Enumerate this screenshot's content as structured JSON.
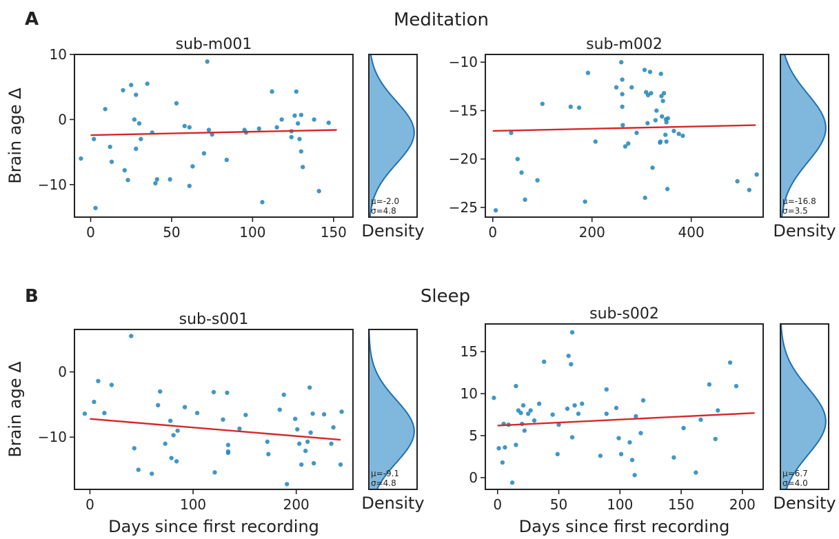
{
  "figure": {
    "panels": [
      {
        "letter": "A",
        "title": "Meditation"
      },
      {
        "letter": "B",
        "title": "Sleep"
      }
    ]
  },
  "colors": {
    "points": "#2b8cbe",
    "fit": "#d62728",
    "density_fill": "#7fb8dc",
    "density_line": "#1f6fb2"
  },
  "chart_data": [
    {
      "type": "scatter",
      "title": "sub-m001",
      "xlabel": "",
      "ylabel": "Brain age Δ",
      "xlim": [
        -10,
        162
      ],
      "ylim": [
        -15,
        10
      ],
      "xticks": [
        0,
        50,
        100,
        150
      ],
      "yticks": [
        -10,
        0,
        10
      ],
      "points": [
        [
          -6,
          -6
        ],
        [
          2,
          -3
        ],
        [
          3,
          -13.6
        ],
        [
          9,
          1.6
        ],
        [
          12,
          -4.2
        ],
        [
          13,
          -6.5
        ],
        [
          20,
          4.5
        ],
        [
          21,
          -7.8
        ],
        [
          23,
          -9.3
        ],
        [
          25,
          5.3
        ],
        [
          27,
          0
        ],
        [
          28,
          -4.5
        ],
        [
          28,
          3.8
        ],
        [
          30,
          -0.6
        ],
        [
          31,
          -3
        ],
        [
          35,
          5.5
        ],
        [
          38,
          -2
        ],
        [
          40,
          -9.8
        ],
        [
          41,
          -9.2
        ],
        [
          49,
          -9.2
        ],
        [
          53,
          2.5
        ],
        [
          58,
          -1
        ],
        [
          61,
          -10.2
        ],
        [
          61,
          -1.2
        ],
        [
          63,
          -7.2
        ],
        [
          70,
          -5.2
        ],
        [
          72,
          8.9
        ],
        [
          73,
          -1.6
        ],
        [
          75,
          -2.3
        ],
        [
          84,
          -6.2
        ],
        [
          95,
          -1.6
        ],
        [
          96,
          -2
        ],
        [
          104,
          -1.4
        ],
        [
          106,
          -12.7
        ],
        [
          112,
          4.3
        ],
        [
          115,
          -1.2
        ],
        [
          118,
          0
        ],
        [
          124,
          -1.8
        ],
        [
          124,
          -2.7
        ],
        [
          126,
          0.6
        ],
        [
          127,
          4.3
        ],
        [
          128,
          -0.6
        ],
        [
          129,
          -3
        ],
        [
          130,
          0.7
        ],
        [
          130,
          -4.9
        ],
        [
          131,
          -7.3
        ],
        [
          138,
          0
        ],
        [
          141,
          -11
        ],
        [
          147,
          -0.5
        ]
      ],
      "fit_line": [
        [
          0,
          -2.4
        ],
        [
          152,
          -1.6
        ]
      ],
      "density": {
        "mu": "μ=-2.0",
        "sigma": "σ=4.8",
        "mean": -2.0,
        "sd": 4.8,
        "xlabel": "Density"
      }
    },
    {
      "type": "scatter",
      "title": "sub-m002",
      "xlabel": "",
      "ylabel": "",
      "xlim": [
        -15,
        545
      ],
      "ylim": [
        -26,
        -9.2
      ],
      "xticks": [
        0,
        200,
        400
      ],
      "yticks": [
        -25,
        -20,
        -15,
        -10
      ],
      "points": [
        [
          6,
          -25.3
        ],
        [
          37,
          -17.3
        ],
        [
          50,
          -20
        ],
        [
          58,
          -21.4
        ],
        [
          65,
          -24.2
        ],
        [
          90,
          -22.2
        ],
        [
          100,
          -14.3
        ],
        [
          157,
          -14.6
        ],
        [
          174,
          -14.7
        ],
        [
          186,
          -24.4
        ],
        [
          192,
          -11.1
        ],
        [
          207,
          -18.2
        ],
        [
          249,
          -12.6
        ],
        [
          259,
          -10
        ],
        [
          261,
          -11.8
        ],
        [
          261,
          -13.3
        ],
        [
          261,
          -14.6
        ],
        [
          262,
          -16.5
        ],
        [
          267,
          -18.7
        ],
        [
          273,
          -18.4
        ],
        [
          280,
          -12.6
        ],
        [
          290,
          -17.3
        ],
        [
          306,
          -10.8
        ],
        [
          307,
          -24
        ],
        [
          309,
          -13.1
        ],
        [
          312,
          -16.3
        ],
        [
          313,
          -13.4
        ],
        [
          317,
          -11
        ],
        [
          319,
          -13.2
        ],
        [
          322,
          -20.9
        ],
        [
          328,
          -16
        ],
        [
          330,
          -15
        ],
        [
          337,
          -18.3
        ],
        [
          338,
          -18.2
        ],
        [
          339,
          -11.2
        ],
        [
          340,
          -13.5
        ],
        [
          341,
          -15.6
        ],
        [
          343,
          -14
        ],
        [
          345,
          -13.2
        ],
        [
          348,
          -17.5
        ],
        [
          349,
          -15.9
        ],
        [
          350,
          -16.2
        ],
        [
          350,
          -18.2
        ],
        [
          352,
          -23.1
        ],
        [
          353,
          -15.8
        ],
        [
          365,
          -17.1
        ],
        [
          375,
          -17.4
        ],
        [
          383,
          -17.6
        ],
        [
          493,
          -22.3
        ],
        [
          517,
          -23.2
        ],
        [
          532,
          -21.6
        ]
      ],
      "fit_line": [
        [
          0,
          -17.1
        ],
        [
          530,
          -16.5
        ]
      ],
      "density": {
        "mu": "μ=-16.8",
        "sigma": "σ=3.5",
        "mean": -16.8,
        "sd": 3.5,
        "xlabel": "Density"
      }
    },
    {
      "type": "scatter",
      "title": "sub-s001",
      "xlabel": "Days since first recording",
      "ylabel": "Brain age Δ",
      "xlim": [
        -15,
        255
      ],
      "ylim": [
        -18,
        6.5
      ],
      "xticks": [
        0,
        100,
        200
      ],
      "yticks": [
        -10,
        0
      ],
      "points": [
        [
          -5,
          -6.4
        ],
        [
          4,
          -4.6
        ],
        [
          8,
          -1.4
        ],
        [
          14,
          -6.3
        ],
        [
          21,
          -2
        ],
        [
          40,
          5.5
        ],
        [
          43,
          -11.7
        ],
        [
          47,
          -15
        ],
        [
          60,
          -15.6
        ],
        [
          66,
          -5.1
        ],
        [
          68,
          -3
        ],
        [
          73,
          -11
        ],
        [
          78,
          -7.5
        ],
        [
          79,
          -13.2
        ],
        [
          81,
          -9.7
        ],
        [
          84,
          -13.7
        ],
        [
          85,
          -9
        ],
        [
          92,
          -5.4
        ],
        [
          104,
          -6.3
        ],
        [
          120,
          -3.1
        ],
        [
          121,
          -15.4
        ],
        [
          129,
          -7.3
        ],
        [
          133,
          -3.2
        ],
        [
          134,
          -12.4
        ],
        [
          134,
          -12.2
        ],
        [
          134,
          -11.2
        ],
        [
          145,
          -8.7
        ],
        [
          151,
          -6.6
        ],
        [
          172,
          -10.7
        ],
        [
          173,
          -12.6
        ],
        [
          184,
          -5.8
        ],
        [
          188,
          -3.5
        ],
        [
          191,
          -17.2
        ],
        [
          199,
          -7.2
        ],
        [
          201,
          -8.8
        ],
        [
          203,
          -11
        ],
        [
          205,
          -14.2
        ],
        [
          209,
          -12.1
        ],
        [
          211,
          -10.7
        ],
        [
          213,
          -2.4
        ],
        [
          214,
          -9.3
        ],
        [
          216,
          -6.4
        ],
        [
          217,
          -14
        ],
        [
          227,
          -6.5
        ],
        [
          234,
          -11
        ],
        [
          236,
          -8.5
        ],
        [
          243,
          -14.2
        ],
        [
          244,
          -6.1
        ]
      ],
      "fit_line": [
        [
          0,
          -7.2
        ],
        [
          243,
          -10.4
        ]
      ],
      "density": {
        "mu": "μ=-9.1",
        "sigma": "σ=4.8",
        "mean": -9.1,
        "sd": 4.8,
        "xlabel": "Density"
      }
    },
    {
      "type": "scatter",
      "title": "sub-s002",
      "xlabel": "Days since first recording",
      "ylabel": "",
      "xlim": [
        -10,
        217
      ],
      "ylim": [
        -1.4,
        18.3
      ],
      "xticks": [
        0,
        50,
        100,
        150,
        200
      ],
      "yticks": [
        0,
        5,
        10,
        15
      ],
      "points": [
        [
          -3,
          9.5
        ],
        [
          1,
          3.5
        ],
        [
          4,
          1.8
        ],
        [
          5,
          6.4
        ],
        [
          6,
          3.6
        ],
        [
          9,
          6.3
        ],
        [
          12,
          -0.6
        ],
        [
          15,
          10.9
        ],
        [
          15,
          3.9
        ],
        [
          17,
          8
        ],
        [
          19,
          7.7
        ],
        [
          20,
          6.4
        ],
        [
          21,
          8.6
        ],
        [
          22,
          5.6
        ],
        [
          25,
          7.6
        ],
        [
          27,
          8
        ],
        [
          30,
          6.8
        ],
        [
          34,
          8.8
        ],
        [
          38,
          13.8
        ],
        [
          45,
          7.5
        ],
        [
          49,
          2.8
        ],
        [
          50,
          6.3
        ],
        [
          57,
          8.2
        ],
        [
          58,
          14.5
        ],
        [
          60,
          13.5
        ],
        [
          61,
          17.3
        ],
        [
          61,
          4.8
        ],
        [
          63,
          8.6
        ],
        [
          66,
          7.6
        ],
        [
          69,
          8.8
        ],
        [
          84,
          2.6
        ],
        [
          89,
          10.5
        ],
        [
          89,
          7.6
        ],
        [
          97,
          8.3
        ],
        [
          99,
          4.7
        ],
        [
          101,
          2.8
        ],
        [
          108,
          4.2
        ],
        [
          110,
          2.1
        ],
        [
          112,
          0.3
        ],
        [
          113,
          7.3
        ],
        [
          117,
          5.3
        ],
        [
          119,
          9.2
        ],
        [
          144,
          2.4
        ],
        [
          152,
          5.9
        ],
        [
          162,
          0.6
        ],
        [
          166,
          6.9
        ],
        [
          173,
          11.1
        ],
        [
          178,
          4.6
        ],
        [
          180,
          8
        ],
        [
          190,
          13.7
        ],
        [
          195,
          10.9
        ]
      ],
      "fit_line": [
        [
          0,
          6.2
        ],
        [
          210,
          7.7
        ]
      ],
      "density": {
        "mu": "μ=6.7",
        "sigma": "σ=4.0",
        "mean": 6.7,
        "sd": 4.0,
        "xlabel": "Density"
      }
    }
  ]
}
